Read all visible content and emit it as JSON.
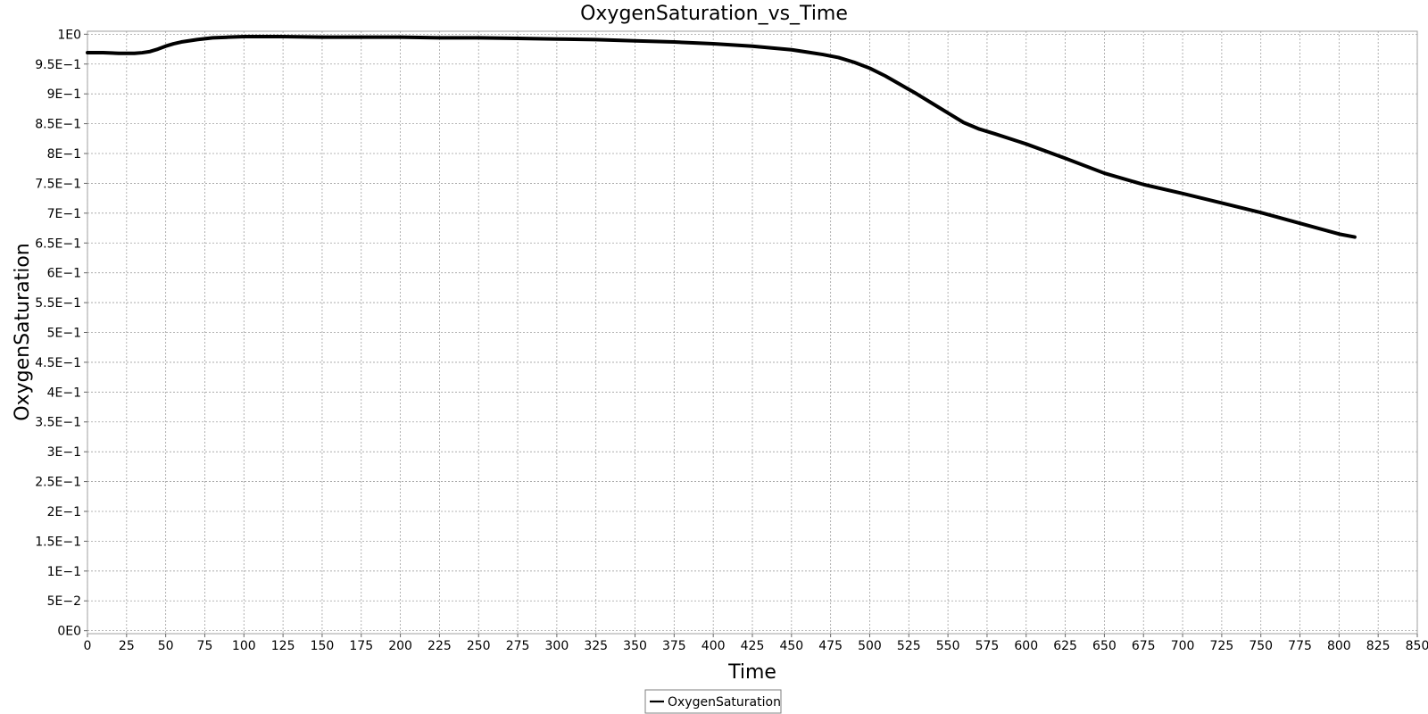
{
  "chart_data": {
    "type": "line",
    "title": "OxygenSaturation_vs_Time",
    "xlabel": "Time",
    "ylabel": "OxygenSaturation",
    "xlim": [
      0,
      850
    ],
    "ylim": [
      -0.005,
      1.005
    ],
    "x_ticks": [
      0,
      25,
      50,
      75,
      100,
      125,
      150,
      175,
      200,
      225,
      250,
      275,
      300,
      325,
      350,
      375,
      400,
      425,
      450,
      475,
      500,
      525,
      550,
      575,
      600,
      625,
      650,
      675,
      700,
      725,
      750,
      775,
      800,
      825,
      850
    ],
    "x_tick_labels": [
      "0",
      "25",
      "50",
      "75",
      "100",
      "125",
      "150",
      "175",
      "200",
      "225",
      "250",
      "275",
      "300",
      "325",
      "350",
      "375",
      "400",
      "425",
      "450",
      "475",
      "500",
      "525",
      "550",
      "575",
      "600",
      "625",
      "650",
      "675",
      "700",
      "725",
      "750",
      "775",
      "800",
      "825",
      "850"
    ],
    "y_ticks": [
      0,
      0.05,
      0.1,
      0.15,
      0.2,
      0.25,
      0.3,
      0.35,
      0.4,
      0.45,
      0.5,
      0.55,
      0.6,
      0.65,
      0.7,
      0.75,
      0.8,
      0.85,
      0.9,
      0.95,
      1.0
    ],
    "y_tick_labels": [
      "0E0",
      "5E−2",
      "1E−1",
      "1.5E−1",
      "2E−1",
      "2.5E−1",
      "3E−1",
      "3.5E−1",
      "4E−1",
      "4.5E−1",
      "5E−1",
      "5.5E−1",
      "6E−1",
      "6.5E−1",
      "7E−1",
      "7.5E−1",
      "8E−1",
      "8.5E−1",
      "9E−1",
      "9.5E−1",
      "1E0"
    ],
    "grid": true,
    "legend": {
      "placement": "bottom-center",
      "entries": [
        "OxygenSaturation"
      ]
    },
    "series": [
      {
        "name": "OxygenSaturation",
        "color": "#000000",
        "x": [
          0,
          10,
          20,
          30,
          35,
          40,
          45,
          50,
          55,
          60,
          70,
          80,
          90,
          100,
          125,
          150,
          175,
          200,
          225,
          250,
          275,
          300,
          325,
          350,
          375,
          400,
          425,
          450,
          460,
          470,
          480,
          490,
          500,
          510,
          520,
          530,
          540,
          550,
          560,
          570,
          580,
          600,
          625,
          650,
          675,
          700,
          725,
          750,
          775,
          800,
          810
        ],
        "y": [
          0.969,
          0.969,
          0.968,
          0.968,
          0.969,
          0.971,
          0.975,
          0.98,
          0.984,
          0.987,
          0.991,
          0.994,
          0.995,
          0.996,
          0.996,
          0.995,
          0.995,
          0.995,
          0.994,
          0.994,
          0.993,
          0.992,
          0.991,
          0.989,
          0.987,
          0.984,
          0.98,
          0.974,
          0.97,
          0.966,
          0.961,
          0.953,
          0.943,
          0.93,
          0.915,
          0.9,
          0.884,
          0.868,
          0.852,
          0.841,
          0.833,
          0.816,
          0.792,
          0.767,
          0.748,
          0.733,
          0.717,
          0.701,
          0.683,
          0.665,
          0.66
        ]
      }
    ]
  }
}
